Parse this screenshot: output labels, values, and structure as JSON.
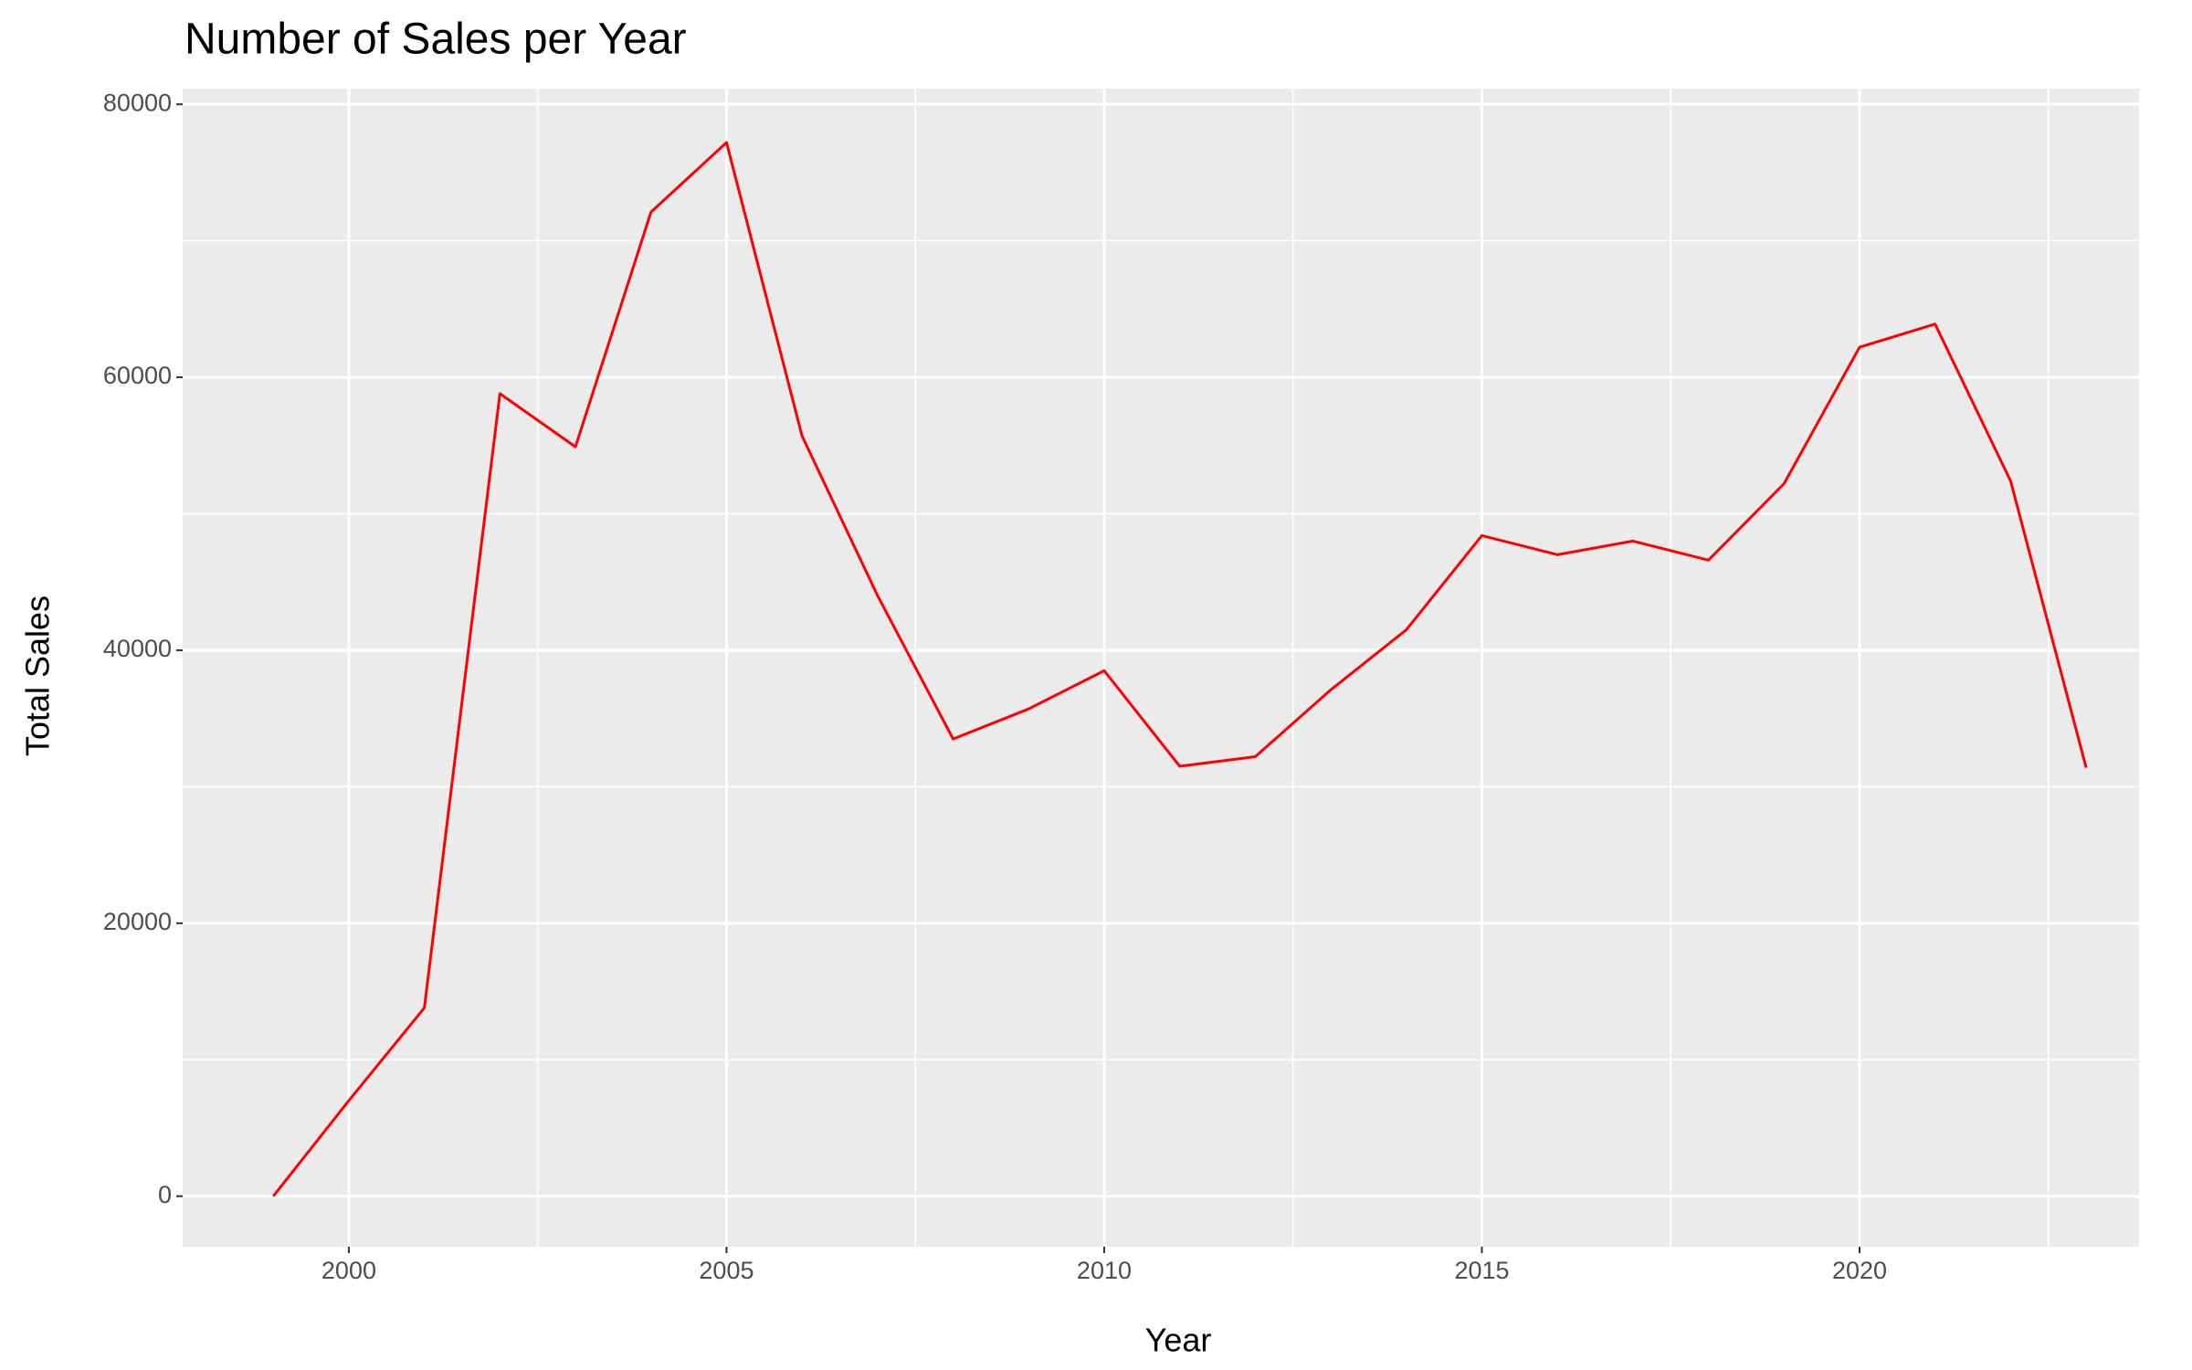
{
  "chart_data": {
    "type": "line",
    "title": "Number of Sales per Year",
    "x_label": "Year",
    "y_label": "Total Sales",
    "x": [
      1999,
      2000,
      2001,
      2002,
      2003,
      2004,
      2005,
      2006,
      2007,
      2008,
      2009,
      2010,
      2011,
      2012,
      2013,
      2014,
      2015,
      2016,
      2017,
      2018,
      2019,
      2020,
      2021,
      2022,
      2023
    ],
    "values": [
      0,
      7000,
      13800,
      58800,
      54900,
      72100,
      77200,
      55700,
      44000,
      33500,
      35700,
      38500,
      31500,
      32200,
      37100,
      41500,
      48400,
      47000,
      48000,
      46600,
      52200,
      62200,
      63900,
      52400,
      31400
    ],
    "color": "#ff0000",
    "xlim": [
      1997.8,
      2023.7
    ],
    "xticks": [
      2000,
      2005,
      2010,
      2015,
      2020
    ],
    "ylim": [
      -3700,
      81150
    ],
    "yticks": [
      0,
      20000,
      40000,
      60000,
      80000
    ],
    "grid": true
  }
}
